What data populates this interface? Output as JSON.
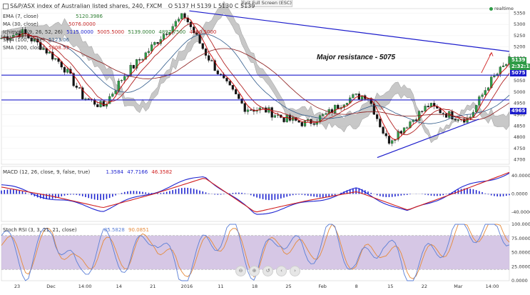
{
  "header": {
    "title": "S&P/ASX index of Australian listed shares, 240, FXCM",
    "ohlc": {
      "o": "O 5137",
      "h": "H 5139",
      "l": "L 5130",
      "c": "C 5139"
    },
    "exit_fullscreen": "Exit Full Screen (ESC)",
    "realtime": "realtime"
  },
  "indicators": {
    "ema": {
      "label": "EMA (7, close)",
      "value": "5120.3986"
    },
    "ma": {
      "label": "MA (30, close)",
      "value": "5076.0000"
    },
    "ichimoku": {
      "label": "Ichimoku (9, 26, 52, 26)",
      "values": [
        "5115.0000",
        "5005.5000",
        "5139.0000",
        "4897.7500",
        "4980.5000"
      ]
    },
    "sma1": {
      "label": "SMA (100, close)",
      "value": "5123.06"
    },
    "sma2": {
      "label": "SMA (200, close)",
      "value": "5008.53"
    },
    "macd": {
      "label": "MACD (12, 26, close, 9, false, true)",
      "values": [
        "1.3584",
        "47.7166",
        "46.3582"
      ]
    },
    "stoch_rsi": {
      "label": "Stoch RSI (3, 3, 21, 21, close)",
      "values": [
        "85.5828",
        "90.0851"
      ]
    }
  },
  "annotation": "Major resistance  - 5075",
  "price_badges": {
    "current": "5139",
    "timer": "2:32:18",
    "resistance": "5075",
    "support": "4965"
  },
  "price_axis": [
    "5350",
    "5300",
    "5250",
    "5200",
    "5150",
    "5100",
    "5050",
    "5000",
    "4950",
    "4900",
    "4850",
    "4800",
    "4750",
    "4700"
  ],
  "macd_axis": [
    "40.0000",
    "0.0000",
    "-40.0000"
  ],
  "rsi_axis": [
    "100.0000",
    "75.0000",
    "50.0000",
    "25.0000",
    "0.0000"
  ],
  "time_axis": [
    "23",
    "Dec",
    "14:00",
    "14",
    "21",
    "2016",
    "11",
    "18",
    "25",
    "Feb",
    "8",
    "15",
    "22",
    "Mar",
    "14:00"
  ],
  "nav_buttons": [
    "⊖",
    "⊕",
    "↺",
    "‹",
    "›"
  ],
  "colors": {
    "ema": "#cc0000",
    "ma": "#b22222",
    "sma": "#2f5a8a",
    "cloud": "#9a9a9a",
    "level": "#1c1ccc",
    "macd": "#1e24d0",
    "signal": "#d01e1e",
    "rsi_fill": "#c8b4dc",
    "k": "#5b7fd6",
    "d": "#e58a3a",
    "bull": "#2e9b46",
    "bear": "#111111"
  },
  "chart_data": [
    {
      "type": "line",
      "title": "S&P/ASX index of Australian listed shares, 240, FXCM",
      "ylim": [
        4680,
        5370
      ],
      "x": [
        0,
        4,
        8,
        12,
        16,
        20,
        24,
        28,
        32,
        36,
        40,
        44,
        48,
        52,
        56,
        60,
        64,
        68,
        72,
        76,
        80,
        84,
        88,
        92,
        96,
        100
      ],
      "values": [
        5240,
        5265,
        5200,
        5120,
        4980,
        4935,
        5070,
        5160,
        5260,
        5340,
        5180,
        5040,
        4930,
        4920,
        4880,
        4860,
        4900,
        4970,
        4990,
        4780,
        4860,
        4940,
        4900,
        4880,
        5040,
        5139
      ]
    },
    {
      "type": "line",
      "title": "MACD (12, 26, close, 9, false, true)",
      "ylim": [
        -60,
        60
      ],
      "x": [
        0,
        10,
        20,
        30,
        40,
        50,
        60,
        70,
        80,
        90,
        100
      ],
      "series": [
        {
          "values": [
            20,
            -10,
            -35,
            5,
            40,
            -45,
            -20,
            10,
            -40,
            10,
            46
          ]
        },
        {
          "values": [
            15,
            -5,
            -30,
            0,
            35,
            -40,
            -15,
            5,
            -35,
            5,
            47
          ]
        }
      ]
    },
    {
      "type": "line",
      "title": "Stoch RSI (3, 3, 21, 21, close)",
      "ylim": [
        0,
        100
      ],
      "x": [
        0,
        5,
        10,
        15,
        20,
        25,
        30,
        35,
        40,
        45,
        50,
        55,
        60,
        65,
        70,
        75,
        80,
        85,
        90,
        95,
        100
      ],
      "series": [
        {
          "values": [
            80,
            20,
            95,
            10,
            70,
            30,
            90,
            5,
            60,
            95,
            15,
            85,
            40,
            90,
            20,
            75,
            10,
            50,
            95,
            90,
            86
          ]
        },
        {
          "values": [
            75,
            30,
            85,
            20,
            60,
            40,
            80,
            15,
            55,
            85,
            25,
            75,
            45,
            80,
            30,
            65,
            20,
            45,
            85,
            92,
            90
          ]
        }
      ]
    }
  ]
}
